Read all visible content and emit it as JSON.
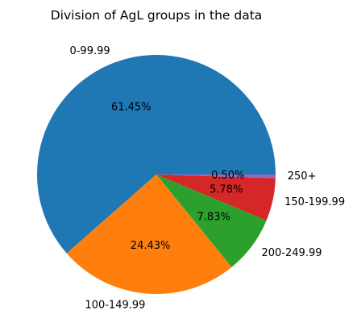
{
  "chart_data": {
    "type": "pie",
    "title": "Division of AgL groups in the data",
    "categories": [
      "0-99.99",
      "100-149.99",
      "200-249.99",
      "150-199.99",
      "250+"
    ],
    "values": [
      61.45,
      24.43,
      7.83,
      5.78,
      0.5
    ],
    "value_labels": [
      "61.45%",
      "24.43%",
      "7.83%",
      "5.78%",
      "0.50%"
    ],
    "colors": [
      "#1f77b4",
      "#ff7f0e",
      "#2ca02c",
      "#d62728",
      "#9467bd"
    ],
    "start_angle_deg": 0,
    "direction": "counterclockwise",
    "legend": "none"
  }
}
